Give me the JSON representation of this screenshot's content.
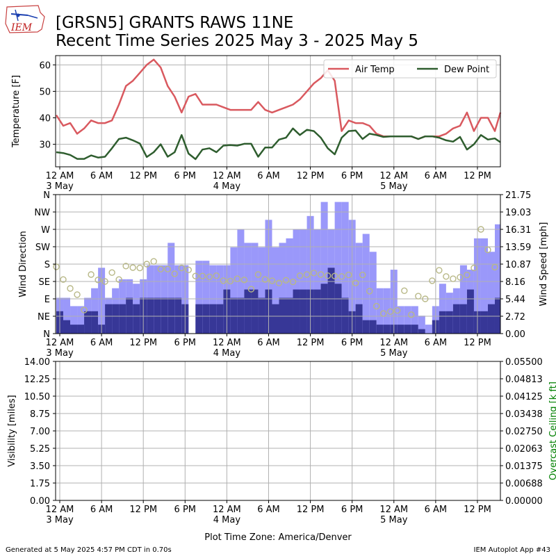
{
  "header": {
    "logo_text": "IEM",
    "title_line1": "[GRSN5] GRANTS RAWS 11NE",
    "title_line2": "Recent Time Series 2025 May 3 - 2025 May 5"
  },
  "footer": {
    "generated": "Generated at 5 May 2025 4:57 PM CDT in 0.70s",
    "app": "IEM Autoplot App #43",
    "timezone": "Plot Time Zone: America/Denver"
  },
  "colors": {
    "air_temp": "#d9595f",
    "dew_point": "#2e5d2e",
    "gust_bar": "#9a98fa",
    "speed_bar": "#373797",
    "direction_marker": "#b8b887",
    "ceiling_axis": "#008000",
    "grid": "#b0b0b0"
  },
  "x_axis": {
    "ticks": [
      {
        "hour": 0,
        "label": "12 AM",
        "sub": "3 May"
      },
      {
        "hour": 6,
        "label": "6 AM",
        "sub": ""
      },
      {
        "hour": 12,
        "label": "12 PM",
        "sub": ""
      },
      {
        "hour": 18,
        "label": "6 PM",
        "sub": ""
      },
      {
        "hour": 24,
        "label": "12 AM",
        "sub": "4 May"
      },
      {
        "hour": 30,
        "label": "6 AM",
        "sub": ""
      },
      {
        "hour": 36,
        "label": "12 PM",
        "sub": ""
      },
      {
        "hour": 42,
        "label": "6 PM",
        "sub": ""
      },
      {
        "hour": 48,
        "label": "12 AM",
        "sub": "5 May"
      },
      {
        "hour": 54,
        "label": "6 AM",
        "sub": ""
      },
      {
        "hour": 60,
        "label": "12 PM",
        "sub": ""
      }
    ],
    "range_hours": [
      -0.6,
      63.3
    ]
  },
  "chart_data": [
    {
      "type": "line",
      "ylabel": "Temperature [F]",
      "ylim": [
        21.5,
        63.5
      ],
      "yticks": [
        30,
        40,
        50,
        60
      ],
      "grid": true,
      "legend_placement": "top-right",
      "x_hours": [
        -0.5,
        0.5,
        1.5,
        2.5,
        3.5,
        4.5,
        5.5,
        6.5,
        7.5,
        8.5,
        9.5,
        10.5,
        11.5,
        12.5,
        13.5,
        14.5,
        15.5,
        16.5,
        17.5,
        18.5,
        19.5,
        20.5,
        21.5,
        22.5,
        23.5,
        24.5,
        25.5,
        26.5,
        27.5,
        28.5,
        29.5,
        30.5,
        31.5,
        32.5,
        33.5,
        34.5,
        35.5,
        36.5,
        37.5,
        38.5,
        39.5,
        40.5,
        41.5,
        42.5,
        43.5,
        44.5,
        45.5,
        46.5,
        47.5,
        48.5,
        49.5,
        50.5,
        51.5,
        52.5,
        53.5,
        54.5,
        55.5,
        56.5,
        57.5,
        58.5,
        59.5,
        60.5,
        61.5,
        62.5,
        63.3
      ],
      "series": [
        {
          "name": "Air Temp",
          "values": [
            41,
            37,
            38,
            34,
            36,
            39,
            38,
            38,
            39,
            45,
            52,
            54,
            57,
            60,
            62,
            59,
            52,
            48,
            42,
            48,
            49,
            45,
            45,
            45,
            44,
            43,
            43,
            43,
            43,
            46,
            43,
            42,
            43,
            44,
            45,
            47,
            50,
            53,
            55,
            58,
            54,
            35,
            39,
            38,
            38,
            37,
            34,
            33,
            33,
            33,
            33,
            33,
            32,
            33,
            33,
            33,
            34,
            36,
            37,
            42,
            35,
            40,
            40,
            35,
            42
          ]
        },
        {
          "name": "Dew Point",
          "values": [
            27,
            26.7,
            26,
            24.5,
            24.5,
            25.8,
            25,
            25.3,
            28.5,
            32,
            32.5,
            31.5,
            30.3,
            25.2,
            27,
            30,
            25.3,
            27,
            33.5,
            26.5,
            24.4,
            28,
            28.5,
            27,
            29.5,
            29.7,
            29.5,
            30.2,
            30.2,
            25.3,
            28.8,
            28.8,
            31.8,
            32.5,
            36,
            33.5,
            35.5,
            35,
            32.5,
            28.5,
            26.2,
            32.5,
            35,
            35.2,
            32,
            34,
            33.5,
            32.8,
            33,
            33,
            33,
            33,
            32,
            33,
            33,
            32.5,
            31.5,
            31,
            32.8,
            28,
            30,
            33.5,
            31.8,
            32.2,
            30.8
          ]
        }
      ]
    },
    {
      "type": "bar",
      "ylabel": "Wind Direction",
      "y2label": "Wind Speed [mph]",
      "ylim": [
        0,
        360
      ],
      "y2lim": [
        0,
        21.75
      ],
      "direction_ticks": [
        "N",
        "NE",
        "E",
        "SE",
        "S",
        "SW",
        "W",
        "NW",
        "N"
      ],
      "speed_ticks": [
        "0.00",
        "2.72",
        "5.44",
        "8.16",
        "10.87",
        "13.59",
        "16.31",
        "19.03",
        "21.75"
      ],
      "grid": true,
      "bar_start_hours": [
        -0.5,
        0.5,
        1.5,
        2.5,
        3.5,
        4.5,
        5.5,
        6.5,
        7.5,
        8.5,
        9.5,
        10.5,
        11.5,
        12.5,
        13.5,
        14.5,
        15.5,
        16.5,
        17.5,
        19.5,
        20.5,
        21.5,
        22.5,
        23.5,
        24.5,
        25.5,
        26.5,
        27.5,
        28.5,
        29.5,
        30.5,
        31.5,
        32.5,
        33.5,
        34.5,
        35.5,
        36.5,
        37.5,
        38.5,
        39.5,
        40.5,
        41.5,
        42.5,
        43.5,
        44.5,
        45.5,
        46.5,
        47.5,
        48.5,
        49.5,
        50.5,
        51.5,
        52.5,
        53.5,
        54.5,
        55.5,
        56.5,
        57.5,
        58.5,
        59.5,
        60.5,
        61.5,
        62.5
      ],
      "gust_mph": [
        5.6,
        5.6,
        4.3,
        4.3,
        5.6,
        7.1,
        10.3,
        5.6,
        7.1,
        8.5,
        8.5,
        7.8,
        8.5,
        10.7,
        10.7,
        10.7,
        14.2,
        10.7,
        10.7,
        11.4,
        11.4,
        10.7,
        10.7,
        10.7,
        13.5,
        16.3,
        14.2,
        14.2,
        13.5,
        17.8,
        13.5,
        14.2,
        14.9,
        16.3,
        16.3,
        18.4,
        16.3,
        20.6,
        16.3,
        20.6,
        20.6,
        17.8,
        14.2,
        15.6,
        12.8,
        7.1,
        7.1,
        10.0,
        4.3,
        4.3,
        4.3,
        2.8,
        1.4,
        4.3,
        7.8,
        6.4,
        7.1,
        10.7,
        10.0,
        14.9,
        14.9,
        12.8,
        17.1
      ],
      "speed_mph": [
        3.5,
        2.1,
        1.4,
        1.4,
        3.5,
        3.5,
        1.4,
        4.6,
        4.6,
        4.6,
        5.6,
        4.6,
        5.6,
        5.6,
        5.6,
        5.6,
        5.6,
        5.6,
        4.6,
        4.6,
        4.6,
        4.6,
        4.6,
        6.9,
        5.6,
        5.6,
        6.9,
        6.9,
        5.6,
        6.9,
        4.6,
        5.6,
        5.6,
        6.9,
        6.9,
        6.9,
        6.9,
        7.8,
        10.3,
        7.8,
        5.6,
        3.5,
        4.6,
        2.1,
        2.1,
        1.4,
        1.4,
        1.4,
        1.4,
        1.4,
        1.4,
        0.7,
        0,
        2.1,
        3.5,
        3.5,
        4.6,
        4.6,
        6.9,
        3.5,
        3.5,
        4.6,
        5.6
      ],
      "direction_x_hours": [
        -0.5,
        0.5,
        1.5,
        2.5,
        3.5,
        4.5,
        5.5,
        6.5,
        7.5,
        8.5,
        9.5,
        10.5,
        11.5,
        12.5,
        13.5,
        14.5,
        15.5,
        16.5,
        17.5,
        18.5,
        19.5,
        20.5,
        21.5,
        22.5,
        23.5,
        24.5,
        25.5,
        26.5,
        27.5,
        28.5,
        29.5,
        30.5,
        31.5,
        32.5,
        33.5,
        34.5,
        35.5,
        36.5,
        37.5,
        38.5,
        39.5,
        40.5,
        41.5,
        42.5,
        43.5,
        44.5,
        45.5,
        46.5,
        47.5,
        48.5,
        49.5,
        50.5,
        51.5,
        52.5,
        53.5,
        54.5,
        55.5,
        56.5,
        57.5,
        58.5,
        59.5,
        60.5,
        61.5,
        62.5
      ],
      "direction_deg": [
        173,
        140,
        117,
        101,
        61,
        153,
        139,
        135,
        158,
        140,
        175,
        171,
        170,
        180,
        187,
        167,
        167,
        155,
        170,
        165,
        149,
        149,
        147,
        150,
        137,
        136,
        142,
        139,
        115,
        153,
        140,
        137,
        131,
        138,
        134,
        150,
        153,
        157,
        153,
        150,
        149,
        148,
        152,
        131,
        152,
        110,
        71,
        52,
        57,
        60,
        111,
        49,
        97,
        90,
        137,
        164,
        148,
        142,
        146,
        152,
        170,
        270,
        217,
        172
      ]
    },
    {
      "type": "line",
      "ylabel": "Visibility [miles]",
      "y2label": "Overcast Ceiling [k ft]",
      "ylim": [
        0,
        14
      ],
      "y2lim": [
        0,
        0.055
      ],
      "vis_ticks": [
        "0.00",
        "1.75",
        "3.50",
        "5.25",
        "7.00",
        "8.75",
        "10.50",
        "12.25",
        "14.00"
      ],
      "ceiling_ticks": [
        "0.00000",
        "0.00688",
        "0.01375",
        "0.02063",
        "0.02750",
        "0.03438",
        "0.04125",
        "0.04813",
        "0.05500"
      ],
      "grid": true,
      "series": []
    }
  ]
}
